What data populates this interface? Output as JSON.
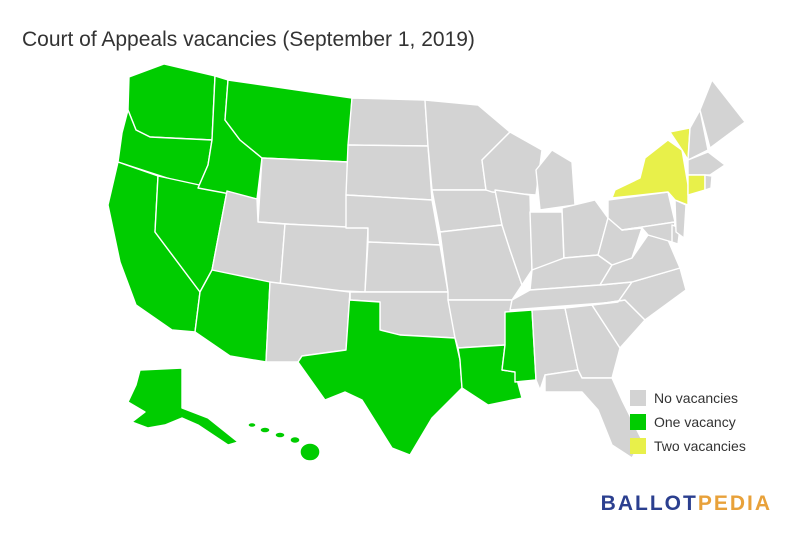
{
  "title": "Court of Appeals vacancies (September 1, 2019)",
  "colors": {
    "none": "#d3d3d3",
    "one": "#00cc00",
    "two": "#e8f04a"
  },
  "legend": [
    {
      "label": "No vacancies",
      "category": "none"
    },
    {
      "label": "One vacancy",
      "category": "one"
    },
    {
      "label": "Two vacancies",
      "category": "two"
    }
  ],
  "states": {
    "WA": "one",
    "OR": "one",
    "CA": "one",
    "ID": "one",
    "NV": "one",
    "MT": "one",
    "AZ": "one",
    "TX": "one",
    "LA": "one",
    "MS": "one",
    "AK": "one",
    "HI": "one",
    "NY": "two",
    "VT": "two",
    "CT": "two",
    "WY": "none",
    "UT": "none",
    "CO": "none",
    "NM": "none",
    "ND": "none",
    "SD": "none",
    "NE": "none",
    "KS": "none",
    "OK": "none",
    "MN": "none",
    "IA": "none",
    "MO": "none",
    "AR": "none",
    "WI": "none",
    "IL": "none",
    "MI": "none",
    "IN": "none",
    "OH": "none",
    "KY": "none",
    "TN": "none",
    "AL": "none",
    "GA": "none",
    "FL": "none",
    "SC": "none",
    "NC": "none",
    "VA": "none",
    "WV": "none",
    "PA": "none",
    "MD": "none",
    "DE": "none",
    "NJ": "none",
    "NH": "none",
    "ME": "none",
    "MA": "none",
    "RI": "none"
  },
  "logo": {
    "part1": "BALLOT",
    "part2": "PEDIA"
  }
}
